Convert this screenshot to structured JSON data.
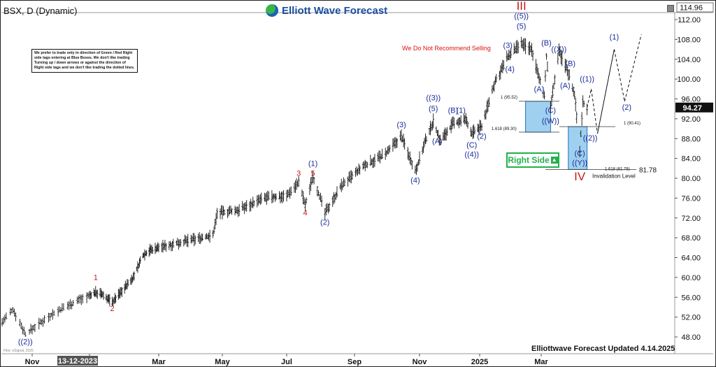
{
  "header": {
    "symbol_title": "BSX, D (Dynamic)",
    "brand": "Elliott Wave Forecast",
    "top_price": "114.96"
  },
  "disclaimer": "We prefer to trade only in direction of Green / Red Right side tags entering at Blue Boxes. We don't like trading Turning up / down arrows or against the direction of Right side tags and we don't like trading the dotted lines.",
  "notice": "We Do Not Recommend Selling",
  "right_side": "Right Side",
  "invalidation": {
    "label": "Invalidation Level",
    "value": "81.78"
  },
  "footer": "Elliottwave Forecast Updated 4.14.2025",
  "watermark": "Fibs: eSignal, 2025",
  "colors": {
    "candle": "#111111",
    "wave_blue": "#1a2d9a",
    "wave_red": "#c81818",
    "box_fill": "#8fc8ec",
    "box_stroke": "#1a74c0",
    "right_green": "#22b14c",
    "last_price_bg": "#111111"
  },
  "chart_data": {
    "type": "line",
    "title": "BSX, D (Dynamic)",
    "xlabel": "",
    "ylabel": "",
    "ylim": [
      46,
      115
    ],
    "y_ticks": [
      48,
      52,
      56,
      60,
      64,
      68,
      72,
      76,
      80,
      84,
      88,
      92,
      96,
      100,
      104,
      108,
      112
    ],
    "x_ticks": [
      "Nov",
      "13-12-2023",
      "Mar",
      "May",
      "Jul",
      "Sep",
      "Nov",
      "2025",
      "Mar"
    ],
    "x_tick_dates": [
      "2023-11-01",
      "2023-12-13",
      "2024-03-01",
      "2024-05-01",
      "2024-07-01",
      "2024-09-01",
      "2024-11-01",
      "2025-01-01",
      "2025-03-01"
    ],
    "x_range": [
      "2023-10-10",
      "2025-07-05"
    ],
    "highlighted_x_tick": "13-12-2023",
    "last_price": "94.27",
    "price_path": [
      {
        "date": "2023-10-10",
        "price": 51.0
      },
      {
        "date": "2023-10-18",
        "price": 53.5
      },
      {
        "date": "2023-10-27",
        "price": 48.6
      },
      {
        "date": "2023-11-15",
        "price": 52.5
      },
      {
        "date": "2023-12-05",
        "price": 55.5
      },
      {
        "date": "2023-12-20",
        "price": 57.0
      },
      {
        "date": "2023-12-28",
        "price": 56.5
      },
      {
        "date": "2024-01-08",
        "price": 55.0
      },
      {
        "date": "2024-02-01",
        "price": 60.0
      },
      {
        "date": "2024-02-12",
        "price": 64.5
      },
      {
        "date": "2024-02-20",
        "price": 65.5
      },
      {
        "date": "2024-03-20",
        "price": 67.0
      },
      {
        "date": "2024-04-22",
        "price": 68.5
      },
      {
        "date": "2024-04-26",
        "price": 73.0
      },
      {
        "date": "2024-05-15",
        "price": 73.5
      },
      {
        "date": "2024-06-10",
        "price": 76.0
      },
      {
        "date": "2024-07-01",
        "price": 76.5
      },
      {
        "date": "2024-07-12",
        "price": 79.2
      },
      {
        "date": "2024-07-18",
        "price": 74.5
      },
      {
        "date": "2024-07-25",
        "price": 80.5
      },
      {
        "date": "2024-08-05",
        "price": 73.0
      },
      {
        "date": "2024-08-20",
        "price": 78.5
      },
      {
        "date": "2024-09-10",
        "price": 82.5
      },
      {
        "date": "2024-10-01",
        "price": 85.0
      },
      {
        "date": "2024-10-15",
        "price": 88.5
      },
      {
        "date": "2024-10-28",
        "price": 81.5
      },
      {
        "date": "2024-11-07",
        "price": 87.5
      },
      {
        "date": "2024-11-15",
        "price": 91.5
      },
      {
        "date": "2024-11-22",
        "price": 87.5
      },
      {
        "date": "2024-12-05",
        "price": 91.0
      },
      {
        "date": "2024-12-18",
        "price": 91.8
      },
      {
        "date": "2024-12-24",
        "price": 89.0
      },
      {
        "date": "2025-01-03",
        "price": 90.5
      },
      {
        "date": "2025-01-15",
        "price": 99.0
      },
      {
        "date": "2025-01-28",
        "price": 104.5
      },
      {
        "date": "2025-02-10",
        "price": 107.0
      },
      {
        "date": "2025-02-20",
        "price": 106.0
      },
      {
        "date": "2025-02-27",
        "price": 100.0
      },
      {
        "date": "2025-03-04",
        "price": 97.0
      },
      {
        "date": "2025-03-06",
        "price": 104.5
      },
      {
        "date": "2025-03-10",
        "price": 94.5
      },
      {
        "date": "2025-03-18",
        "price": 105.5
      },
      {
        "date": "2025-03-26",
        "price": 102.0
      },
      {
        "date": "2025-04-02",
        "price": 97.0
      },
      {
        "date": "2025-04-07",
        "price": 85.5
      },
      {
        "date": "2025-04-10",
        "price": 95.5
      },
      {
        "date": "2025-04-14",
        "price": 94.27
      }
    ],
    "projection_path": [
      {
        "date": "2025-04-14",
        "price": 94.27
      },
      {
        "date": "2025-04-18",
        "price": 98.0
      },
      {
        "date": "2025-04-24",
        "price": 89.0
      },
      {
        "date": "2025-05-10",
        "price": 106.0
      },
      {
        "date": "2025-05-20",
        "price": 95.5
      },
      {
        "date": "2025-06-05",
        "price": 109.0
      }
    ],
    "blue_boxes": [
      {
        "from": "2025-02-14",
        "to": "2025-03-10",
        "high": 95.52,
        "low": 89.3
      },
      {
        "from": "2025-03-27",
        "to": "2025-04-14",
        "high": 90.41,
        "low": 81.78
      }
    ],
    "fib_levels": [
      {
        "label": "1 (95.52)",
        "value": 95.52
      },
      {
        "label": "1.618 (89.30)",
        "value": 89.3
      },
      {
        "label": "1 (90.41)",
        "value": 90.41
      },
      {
        "label": "1.618 (81.78)",
        "value": 81.78
      }
    ],
    "wave_labels": [
      {
        "text": "((2))",
        "date": "2023-10-27",
        "price": 46.5,
        "color": "blue"
      },
      {
        "text": "1",
        "date": "2023-12-20",
        "price": 59.5,
        "color": "red"
      },
      {
        "text": "2",
        "date": "2024-01-08",
        "price": 53.2,
        "color": "red"
      },
      {
        "text": "3",
        "date": "2024-07-12",
        "price": 80.5,
        "color": "red"
      },
      {
        "text": "4",
        "date": "2024-07-18",
        "price": 72.5,
        "color": "red"
      },
      {
        "text": "5",
        "date": "2024-07-25",
        "price": 80.5,
        "color": "red"
      },
      {
        "text": "(1)",
        "date": "2024-07-25",
        "price": 82.5,
        "color": "blue"
      },
      {
        "text": "(2)",
        "date": "2024-08-05",
        "price": 70.6,
        "color": "blue"
      },
      {
        "text": "(3)",
        "date": "2024-10-15",
        "price": 90.3,
        "color": "blue"
      },
      {
        "text": "(4)",
        "date": "2024-10-28",
        "price": 79.1,
        "color": "blue"
      },
      {
        "text": "(5)",
        "date": "2024-11-15",
        "price": 93.5,
        "color": "blue"
      },
      {
        "text": "((3))",
        "date": "2024-11-15",
        "price": 95.7,
        "color": "blue"
      },
      {
        "text": "(A)",
        "date": "2024-11-19",
        "price": 87.0,
        "color": "blue"
      },
      {
        "text": "(B)",
        "date": "2024-12-05",
        "price": 93.2,
        "color": "blue"
      },
      {
        "text": "(1)",
        "date": "2024-12-13",
        "price": 93.2,
        "color": "blue"
      },
      {
        "text": "(C)",
        "date": "2024-12-24",
        "price": 86.2,
        "color": "blue"
      },
      {
        "text": "((4))",
        "date": "2024-12-24",
        "price": 84.3,
        "color": "blue"
      },
      {
        "text": "(2)",
        "date": "2025-01-03",
        "price": 88.0,
        "color": "blue"
      },
      {
        "text": "(3)",
        "date": "2025-01-28",
        "price": 106.3,
        "color": "blue"
      },
      {
        "text": "(4)",
        "date": "2025-01-30",
        "price": 101.5,
        "color": "blue"
      },
      {
        "text": "(5)",
        "date": "2025-02-10",
        "price": 110.2,
        "color": "blue"
      },
      {
        "text": "((5))",
        "date": "2025-02-10",
        "price": 112.2,
        "color": "blue"
      },
      {
        "text": "III",
        "date": "2025-02-10",
        "price": 114.0,
        "color": "red"
      },
      {
        "text": "(A)",
        "date": "2025-02-27",
        "price": 97.5,
        "color": "blue"
      },
      {
        "text": "(B)",
        "date": "2025-03-06",
        "price": 106.8,
        "color": "blue"
      },
      {
        "text": "(C)",
        "date": "2025-03-10",
        "price": 93.2,
        "color": "blue"
      },
      {
        "text": "((W))",
        "date": "2025-03-10",
        "price": 91.1,
        "color": "blue"
      },
      {
        "text": "((X))",
        "date": "2025-03-18",
        "price": 105.5,
        "color": "blue"
      },
      {
        "text": "(B)",
        "date": "2025-03-29",
        "price": 102.6,
        "color": "blue"
      },
      {
        "text": "(A)",
        "date": "2025-03-24",
        "price": 98.2,
        "color": "blue"
      },
      {
        "text": "((1))",
        "date": "2025-04-14",
        "price": 99.5,
        "color": "blue"
      },
      {
        "text": "((2))",
        "date": "2025-04-17",
        "price": 87.6,
        "color": "blue"
      },
      {
        "text": "(C)",
        "date": "2025-04-07",
        "price": 84.5,
        "color": "blue"
      },
      {
        "text": "((Y))",
        "date": "2025-04-07",
        "price": 82.6,
        "color": "blue"
      },
      {
        "text": "IV",
        "date": "2025-04-07",
        "price": 79.6,
        "color": "red"
      },
      {
        "text": "(1)",
        "date": "2025-05-10",
        "price": 108.0,
        "color": "blue"
      },
      {
        "text": "(2)",
        "date": "2025-05-22",
        "price": 93.8,
        "color": "blue"
      }
    ]
  }
}
